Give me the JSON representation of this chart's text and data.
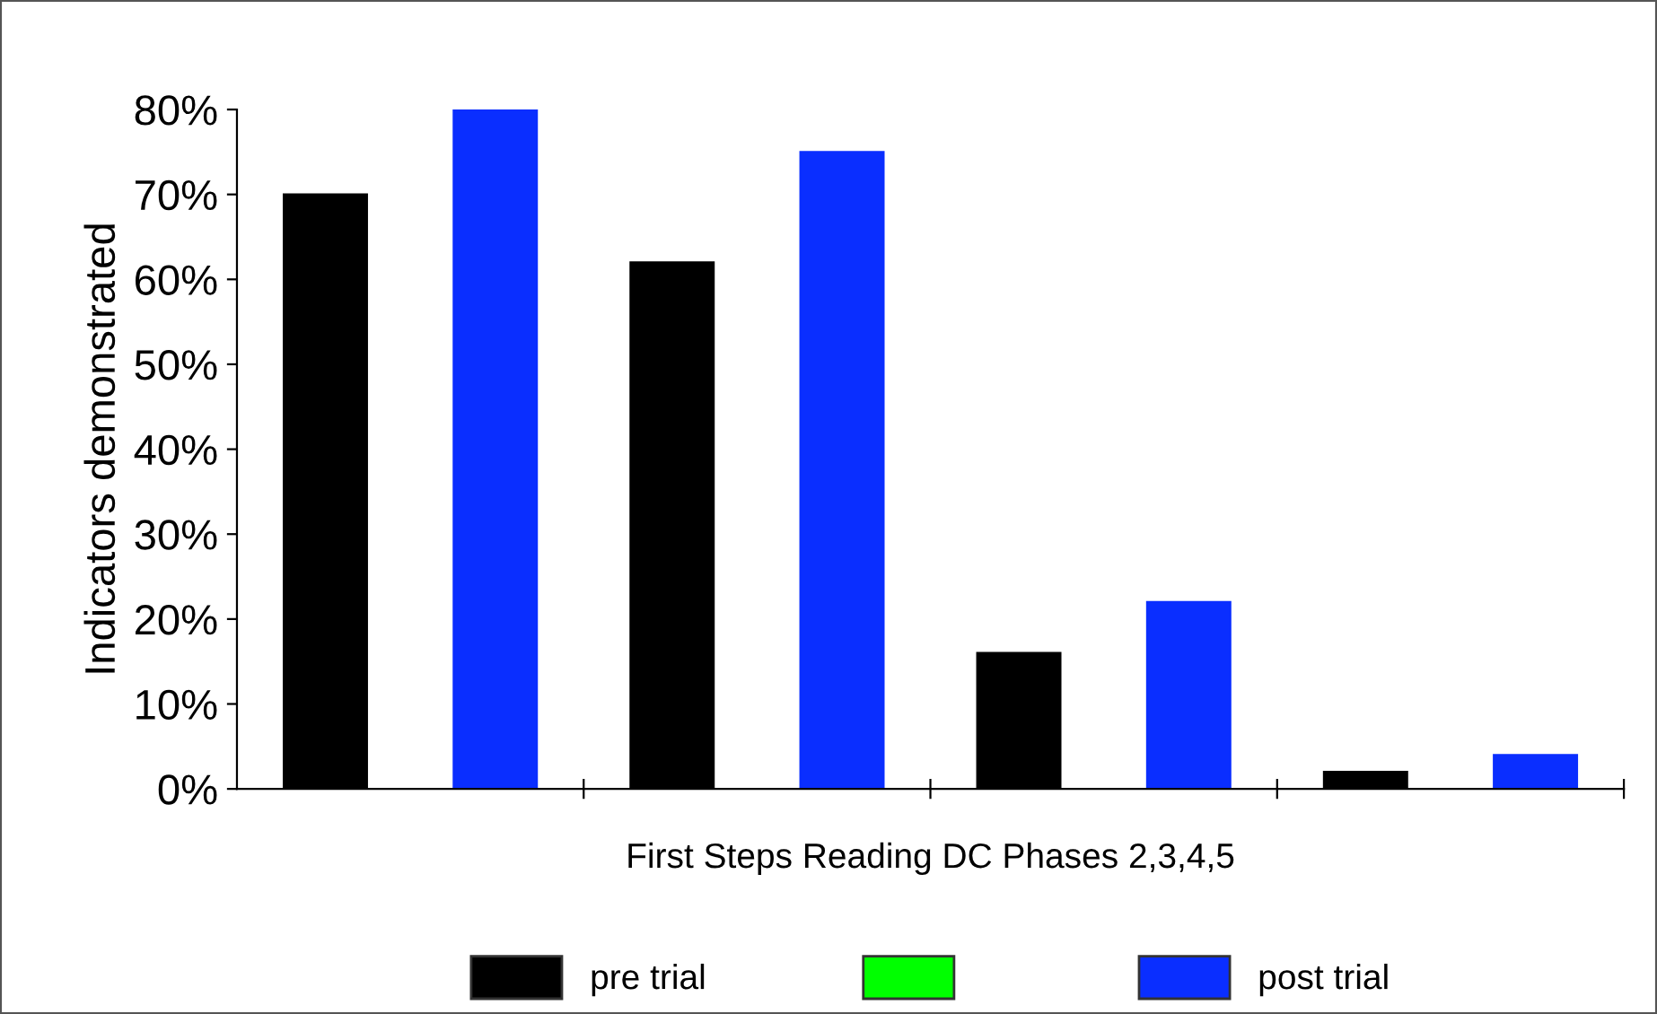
{
  "chart_data": {
    "type": "bar",
    "xlabel": "First Steps Reading DC Phases 2,3,4,5",
    "ylabel": "Indicators demonstrated",
    "categories": [
      null,
      null,
      null,
      null
    ],
    "series": [
      {
        "name": "pre trial",
        "color": "#000000",
        "values": [
          70,
          62,
          16,
          2
        ]
      },
      {
        "color": "#00ff00",
        "values": [
          null,
          null,
          null,
          null
        ]
      },
      {
        "name": "post trial",
        "color": "#0a2eff",
        "values": [
          80,
          75,
          22,
          4
        ]
      }
    ],
    "ylim": [
      0,
      80
    ],
    "yticks": [
      {
        "value": 0,
        "label": "0%"
      },
      {
        "value": 10,
        "label": "10%"
      },
      {
        "value": 20,
        "label": "20%"
      },
      {
        "value": 30,
        "label": "30%"
      },
      {
        "value": 40,
        "label": "40%"
      },
      {
        "value": 50,
        "label": "50%"
      },
      {
        "value": 60,
        "label": "60%"
      },
      {
        "value": 70,
        "label": "70%"
      },
      {
        "value": 80,
        "label": "80%"
      }
    ],
    "grid": false,
    "legend": "bottom"
  }
}
